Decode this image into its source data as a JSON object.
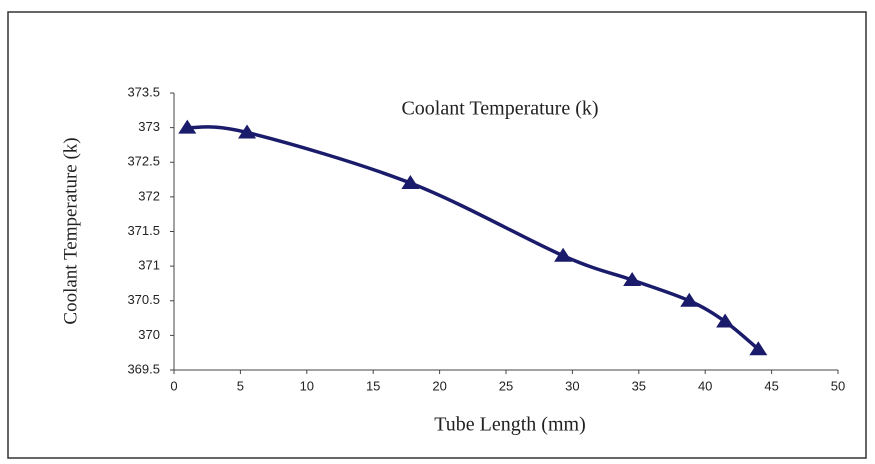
{
  "chart_data": {
    "type": "line",
    "title": "Coolant Temperature (k)",
    "x_label": "Tube Length (mm)",
    "y_label": "Coolant Temperature (k)",
    "series": [
      {
        "name": "Coolant Temperature (k)",
        "color": "#1b1b6b",
        "x": [
          1,
          5.5,
          17.8,
          29.3,
          34.5,
          38.8,
          41.5,
          44
        ],
        "values": [
          373,
          372.93,
          372.2,
          371.15,
          370.8,
          370.5,
          370.2,
          369.8
        ]
      }
    ],
    "xlim": [
      0,
      50
    ],
    "xticks": [
      0,
      5,
      10,
      15,
      20,
      25,
      30,
      35,
      40,
      45,
      50
    ],
    "ylim": [
      369.5,
      373.5
    ],
    "yticks": [
      369.5,
      370,
      370.5,
      371,
      371.5,
      372,
      372.5,
      373,
      373.5
    ]
  }
}
